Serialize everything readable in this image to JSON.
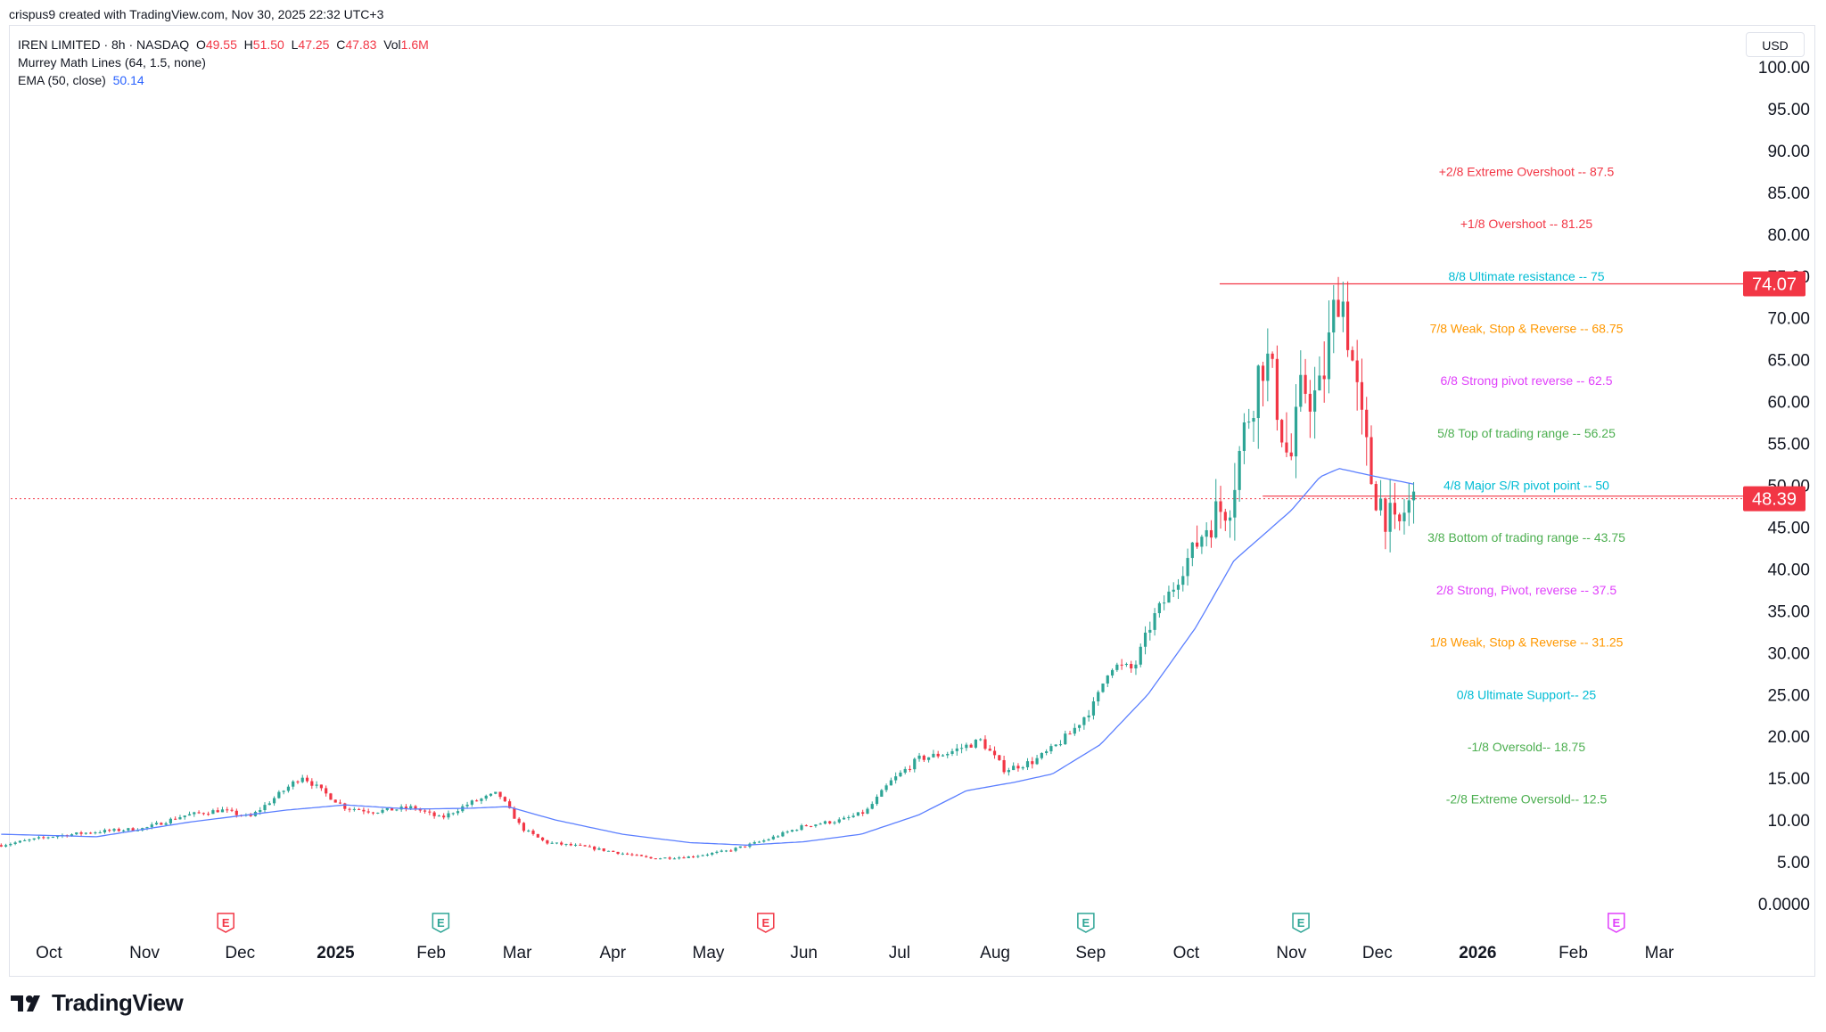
{
  "header": {
    "created_text": "crispus9 created with TradingView.com, Nov 30, 2025 22:32 UTC+3"
  },
  "legend": {
    "symbol": "IREN LIMITED · 8h · NASDAQ",
    "open_label": "O",
    "open": "49.55",
    "high_label": "H",
    "high": "51.50",
    "low_label": "L",
    "low": "47.25",
    "close_label": "C",
    "close": "47.83",
    "vol_label": "Vol",
    "vol": "1.6M",
    "indicator1": "Murrey Math Lines (64, 1.5, none)",
    "indicator2_label": "EMA (50, close)",
    "indicator2_value": "50.14"
  },
  "currency": "USD",
  "brand": {
    "name": "TradingView"
  },
  "colors": {
    "up": "#2ea596",
    "down": "#f23645",
    "ema": "#5b7fff",
    "red_line": "#f23645",
    "grid_text": "#131722"
  },
  "chart_data": {
    "type": "candlestick",
    "y_axis": {
      "min": 0,
      "max": 100,
      "ticks": [
        "0.0000",
        "5.00",
        "10.00",
        "15.00",
        "20.00",
        "25.00",
        "30.00",
        "35.00",
        "40.00",
        "45.00",
        "50.00",
        "55.00",
        "60.00",
        "65.00",
        "70.00",
        "75.00",
        "80.00",
        "85.00",
        "90.00",
        "95.00",
        "100.00"
      ],
      "tick_values": [
        0,
        5,
        10,
        15,
        20,
        25,
        30,
        35,
        40,
        45,
        50,
        55,
        60,
        65,
        70,
        75,
        80,
        85,
        90,
        95,
        100
      ]
    },
    "x_axis": {
      "labels": [
        {
          "text": "Oct",
          "t": 0.5,
          "bold": false
        },
        {
          "text": "Nov",
          "t": 1.5,
          "bold": false
        },
        {
          "text": "Dec",
          "t": 2.5,
          "bold": false
        },
        {
          "text": "2025",
          "t": 3.5,
          "bold": true
        },
        {
          "text": "Feb",
          "t": 4.5,
          "bold": false
        },
        {
          "text": "Mar",
          "t": 5.4,
          "bold": false
        },
        {
          "text": "Apr",
          "t": 6.4,
          "bold": false
        },
        {
          "text": "May",
          "t": 7.4,
          "bold": false
        },
        {
          "text": "Jun",
          "t": 8.4,
          "bold": false
        },
        {
          "text": "Jul",
          "t": 9.4,
          "bold": false
        },
        {
          "text": "Aug",
          "t": 10.4,
          "bold": false
        },
        {
          "text": "Sep",
          "t": 11.4,
          "bold": false
        },
        {
          "text": "Oct",
          "t": 12.4,
          "bold": false
        },
        {
          "text": "Nov",
          "t": 13.5,
          "bold": false
        },
        {
          "text": "Dec",
          "t": 14.4,
          "bold": false
        },
        {
          "text": "2026",
          "t": 15.45,
          "bold": true
        },
        {
          "text": "Feb",
          "t": 16.45,
          "bold": false
        },
        {
          "text": "Mar",
          "t": 17.35,
          "bold": false
        }
      ],
      "t_range": [
        0,
        18.5
      ]
    },
    "earnings_markers": [
      {
        "t": 2.35,
        "label": "E",
        "type": "down"
      },
      {
        "t": 4.6,
        "label": "E",
        "type": "up"
      },
      {
        "t": 8.0,
        "label": "E",
        "type": "down"
      },
      {
        "t": 11.35,
        "label": "E",
        "type": "up"
      },
      {
        "t": 13.6,
        "label": "E",
        "type": "up"
      },
      {
        "t": 16.9,
        "label": "E",
        "type": "future"
      }
    ],
    "price_anchors": [
      [
        0.0,
        7.0
      ],
      [
        0.5,
        8.0
      ],
      [
        1.0,
        8.6
      ],
      [
        1.5,
        9.0
      ],
      [
        1.9,
        10.5
      ],
      [
        2.3,
        11.2
      ],
      [
        2.6,
        10.3
      ],
      [
        2.9,
        13.0
      ],
      [
        3.15,
        15.3
      ],
      [
        3.35,
        13.5
      ],
      [
        3.6,
        11.5
      ],
      [
        3.9,
        11.0
      ],
      [
        4.3,
        11.5
      ],
      [
        4.6,
        10.2
      ],
      [
        4.9,
        12.0
      ],
      [
        5.2,
        13.2
      ],
      [
        5.45,
        9.0
      ],
      [
        5.7,
        7.3
      ],
      [
        6.1,
        6.8
      ],
      [
        6.4,
        6.2
      ],
      [
        6.8,
        5.4
      ],
      [
        7.2,
        5.6
      ],
      [
        7.6,
        6.3
      ],
      [
        8.0,
        7.6
      ],
      [
        8.4,
        9.3
      ],
      [
        8.8,
        10.0
      ],
      [
        9.05,
        11.0
      ],
      [
        9.3,
        14.5
      ],
      [
        9.6,
        17.3
      ],
      [
        9.9,
        18.0
      ],
      [
        10.25,
        19.5
      ],
      [
        10.5,
        16.0
      ],
      [
        10.8,
        17.0
      ],
      [
        11.0,
        18.5
      ],
      [
        11.2,
        20.5
      ],
      [
        11.45,
        24.0
      ],
      [
        11.6,
        28.5
      ],
      [
        11.85,
        28.0
      ],
      [
        12.05,
        34.0
      ],
      [
        12.25,
        37.5
      ],
      [
        12.45,
        42.0
      ],
      [
        12.65,
        46.0
      ],
      [
        12.85,
        48.0
      ],
      [
        12.98,
        55.0
      ],
      [
        13.1,
        61.0
      ],
      [
        13.22,
        66.0
      ],
      [
        13.35,
        60.0
      ],
      [
        13.48,
        52.0
      ],
      [
        13.62,
        62.0
      ],
      [
        13.78,
        60.0
      ],
      [
        13.9,
        67.0
      ],
      [
        14.0,
        74.5
      ],
      [
        14.1,
        68.0
      ],
      [
        14.22,
        58.0
      ],
      [
        14.35,
        50.0
      ],
      [
        14.5,
        46.5
      ],
      [
        14.6,
        44.0
      ],
      [
        14.7,
        47.5
      ],
      [
        14.78,
        48.1
      ]
    ],
    "ema_anchors": [
      [
        0.0,
        8.3
      ],
      [
        1.0,
        8.0
      ],
      [
        2.0,
        9.8
      ],
      [
        3.0,
        11.2
      ],
      [
        3.6,
        11.8
      ],
      [
        4.3,
        11.3
      ],
      [
        4.9,
        11.4
      ],
      [
        5.3,
        11.6
      ],
      [
        5.8,
        10.0
      ],
      [
        6.5,
        8.3
      ],
      [
        7.2,
        7.3
      ],
      [
        7.8,
        7.0
      ],
      [
        8.4,
        7.4
      ],
      [
        9.0,
        8.3
      ],
      [
        9.6,
        10.6
      ],
      [
        10.1,
        13.5
      ],
      [
        10.6,
        14.5
      ],
      [
        11.0,
        15.5
      ],
      [
        11.5,
        19.0
      ],
      [
        12.0,
        25.0
      ],
      [
        12.5,
        33.0
      ],
      [
        12.9,
        41.0
      ],
      [
        13.2,
        44.0
      ],
      [
        13.5,
        47.0
      ],
      [
        13.8,
        51.0
      ],
      [
        14.0,
        52.0
      ],
      [
        14.4,
        51.0
      ],
      [
        14.78,
        50.14
      ]
    ],
    "hlines": [
      {
        "value": 74.07,
        "label": "74.07",
        "t_start": 12.75,
        "style": "solid"
      },
      {
        "value": 48.39,
        "label": "48.39",
        "t_start": 0,
        "style": "dotted"
      },
      {
        "value": 48.7,
        "label": "",
        "t_start": 13.2,
        "style": "solid"
      }
    ],
    "murrey_levels": [
      {
        "value": 87.5,
        "label": "+2/8 Extreme Overshoot --  87.5",
        "color": "#f23645"
      },
      {
        "value": 81.25,
        "label": "+1/8 Overshoot --  81.25",
        "color": "#f23645"
      },
      {
        "value": 75,
        "label": "8/8 Ultimate resistance --  75",
        "color": "#00bcd4"
      },
      {
        "value": 68.75,
        "label": "7/8 Weak, Stop & Reverse --  68.75",
        "color": "#ff9800"
      },
      {
        "value": 62.5,
        "label": "6/8 Strong pivot reverse --  62.5",
        "color": "#e040fb"
      },
      {
        "value": 56.25,
        "label": "5/8 Top of trading range --  56.25",
        "color": "#4caf50"
      },
      {
        "value": 50,
        "label": "4/8 Major S/R pivot point --  50",
        "color": "#00bcd4"
      },
      {
        "value": 43.75,
        "label": "3/8 Bottom of trading range --  43.75",
        "color": "#4caf50"
      },
      {
        "value": 37.5,
        "label": "2/8 Strong, Pivot, reverse --  37.5",
        "color": "#e040fb"
      },
      {
        "value": 31.25,
        "label": "1/8 Weak, Stop & Reverse --  31.25",
        "color": "#ff9800"
      },
      {
        "value": 25,
        "label": "0/8 Ultimate Support--  25",
        "color": "#00bcd4"
      },
      {
        "value": 18.75,
        "label": "-1/8 Oversold--  18.75",
        "color": "#4caf50"
      },
      {
        "value": 12.5,
        "label": "-2/8 Extreme Oversold--  12.5",
        "color": "#4caf50"
      }
    ]
  }
}
